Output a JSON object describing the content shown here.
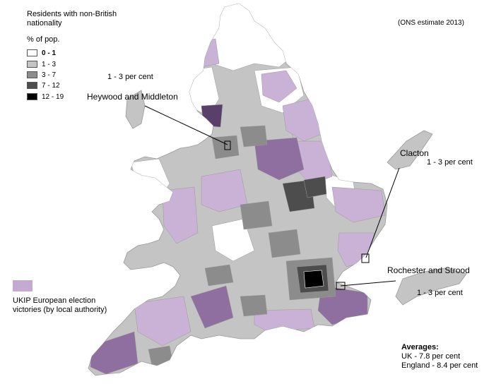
{
  "legend": {
    "title": "Residents with non-British nationality",
    "unit_label": "% of pop.",
    "classes": [
      {
        "label": "0 - 1",
        "color": "#ffffff"
      },
      {
        "label": "1 - 3",
        "color": "#c4c4c4"
      },
      {
        "label": "3 - 7",
        "color": "#8c8c8c"
      },
      {
        "label": "7 - 12",
        "color": "#4d4d4d"
      },
      {
        "label": "12 - 19",
        "color": "#000000"
      }
    ],
    "ukip_color": "#c4a9d0",
    "ukip_label": "UKIP European election victories (by local authority)"
  },
  "source": "(ONS estimate 2013)",
  "callouts": {
    "heywood": {
      "name": "Heywood and Middleton",
      "value": "1 - 3 per cent"
    },
    "clacton": {
      "name": "Clacton",
      "value": "1 - 3 per cent"
    },
    "rochester": {
      "name": "Rochester and Strood",
      "value": "1 - 3 per cent"
    }
  },
  "averages": {
    "title": "Averages:",
    "uk": "UK - 7.8 per cent",
    "england": "England - 8.4 per cent"
  },
  "colors": {
    "ukip_light": "#c9b2d5",
    "ukip_mid": "#8f6f9f",
    "ukip_dark": "#5b3f6b",
    "outline": "#9a9a9a"
  }
}
